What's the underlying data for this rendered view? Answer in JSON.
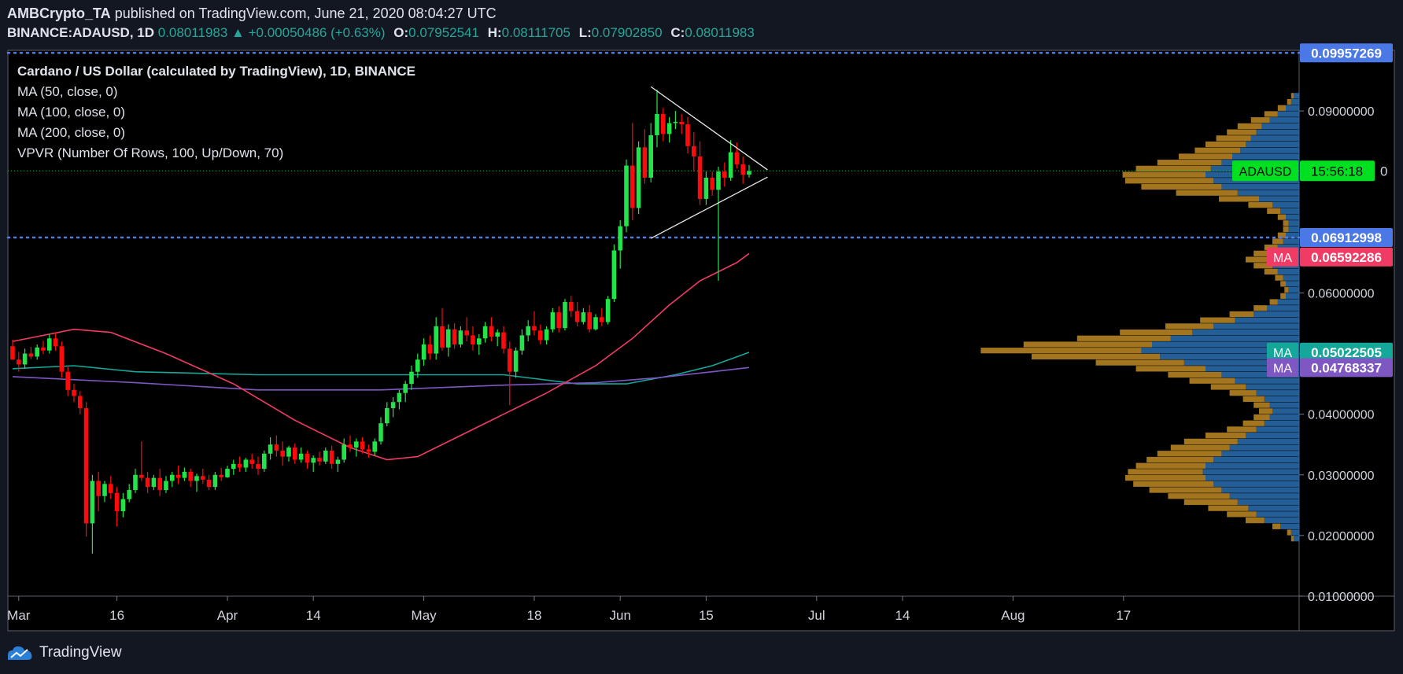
{
  "header": {
    "author": "AMBCrypto_TA",
    "published_text": "published on TradingView.com, June 21, 2020 08:04:27 UTC",
    "symbol": "BINANCE:ADAUSD, 1D",
    "last_price": "0.08011983",
    "change_arrow": "▲",
    "change": "+0.00050486 (+0.63%)",
    "open_label": "O:",
    "open": "0.07952541",
    "high_label": "H:",
    "high": "0.08111705",
    "low_label": "L:",
    "low": "0.07902850",
    "close_label": "C:",
    "close": "0.08011983"
  },
  "legend": {
    "title": "Cardano / US Dollar (calculated by TradingView), 1D, BINANCE",
    "ma50": "MA (50, close, 0)",
    "ma100": "MA (100, close, 0)",
    "ma200": "MA (200, close, 0)",
    "vpvr": "VPVR (Number Of Rows, 100, Up/Down, 70)"
  },
  "price_labels": {
    "top_line": "0.09957269",
    "mid_line": "0.06912998",
    "ma50": "0.06592286",
    "ma100": "0.05022505",
    "ma200": "0.04768337",
    "ma_tag": "MA",
    "ticker": "ADAUSD",
    "countdown": "15:56:18",
    "price_tail": "0"
  },
  "colors": {
    "background": "#131722",
    "bull": "#22e34a",
    "bear": "#ff0a0a",
    "ma50": "#f03c64",
    "ma100": "#14a89a",
    "ma200": "#7e57c2",
    "level_line": "#5b7cf0",
    "vp_up": "#2a6fb0",
    "vp_down": "#c08a24",
    "triangle": "#e8e8e8"
  },
  "footer": {
    "brand": "TradingView"
  },
  "chart_data": {
    "type": "candlestick",
    "title": "Cardano / US Dollar (calculated by TradingView), 1D, BINANCE",
    "x_ticks": [
      "Mar",
      "16",
      "Apr",
      "14",
      "May",
      "18",
      "Jun",
      "15",
      "Jul",
      "14",
      "Aug",
      "17"
    ],
    "y_ticks": [
      "0.09000000",
      "0.06000000",
      "0.05000000",
      "0.04000000",
      "0.03000000",
      "0.02000000",
      "0.01000000"
    ],
    "ylim": [
      0.01,
      0.1
    ],
    "ohlc": [
      [
        0.0512,
        0.0523,
        0.0491,
        0.049
      ],
      [
        0.049,
        0.0503,
        0.047,
        0.0482
      ],
      [
        0.0482,
        0.0508,
        0.0475,
        0.05
      ],
      [
        0.05,
        0.0511,
        0.0491,
        0.0495
      ],
      [
        0.0495,
        0.0515,
        0.049,
        0.051
      ],
      [
        0.051,
        0.0521,
        0.0499,
        0.0505
      ],
      [
        0.0505,
        0.0532,
        0.05,
        0.0525
      ],
      [
        0.0525,
        0.0535,
        0.0505,
        0.0512
      ],
      [
        0.0512,
        0.052,
        0.046,
        0.047
      ],
      [
        0.047,
        0.0478,
        0.043,
        0.044
      ],
      [
        0.044,
        0.045,
        0.042,
        0.043
      ],
      [
        0.043,
        0.0438,
        0.04,
        0.041
      ],
      [
        0.041,
        0.042,
        0.0198,
        0.022
      ],
      [
        0.022,
        0.03,
        0.017,
        0.029
      ],
      [
        0.029,
        0.0305,
        0.024,
        0.0265
      ],
      [
        0.0265,
        0.029,
        0.0255,
        0.0285
      ],
      [
        0.0285,
        0.0298,
        0.026,
        0.027
      ],
      [
        0.027,
        0.028,
        0.0215,
        0.024
      ],
      [
        0.024,
        0.027,
        0.023,
        0.026
      ],
      [
        0.026,
        0.0285,
        0.0255,
        0.0275
      ],
      [
        0.0275,
        0.031,
        0.027,
        0.03
      ],
      [
        0.03,
        0.0355,
        0.029,
        0.0295
      ],
      [
        0.0295,
        0.0305,
        0.027,
        0.028
      ],
      [
        0.028,
        0.03,
        0.0275,
        0.0295
      ],
      [
        0.0295,
        0.031,
        0.0265,
        0.0275
      ],
      [
        0.0275,
        0.0298,
        0.027,
        0.029
      ],
      [
        0.029,
        0.0305,
        0.028,
        0.03
      ],
      [
        0.03,
        0.0315,
        0.0285,
        0.0295
      ],
      [
        0.0295,
        0.0312,
        0.029,
        0.0305
      ],
      [
        0.0305,
        0.031,
        0.028,
        0.029
      ],
      [
        0.029,
        0.0302,
        0.0272,
        0.0298
      ],
      [
        0.0298,
        0.031,
        0.0285,
        0.0292
      ],
      [
        0.0292,
        0.03,
        0.0275,
        0.028
      ],
      [
        0.028,
        0.0305,
        0.0275,
        0.03
      ],
      [
        0.03,
        0.0312,
        0.029,
        0.0296
      ],
      [
        0.0296,
        0.0315,
        0.0295,
        0.031
      ],
      [
        0.031,
        0.0325,
        0.03,
        0.0318
      ],
      [
        0.0318,
        0.033,
        0.0305,
        0.0312
      ],
      [
        0.0312,
        0.0328,
        0.0305,
        0.0325
      ],
      [
        0.0325,
        0.0335,
        0.031,
        0.0318
      ],
      [
        0.0318,
        0.033,
        0.03,
        0.031
      ],
      [
        0.031,
        0.034,
        0.0305,
        0.0335
      ],
      [
        0.0335,
        0.0362,
        0.0325,
        0.035
      ],
      [
        0.035,
        0.0365,
        0.033,
        0.034
      ],
      [
        0.034,
        0.0355,
        0.0315,
        0.033
      ],
      [
        0.033,
        0.0348,
        0.0322,
        0.0345
      ],
      [
        0.0345,
        0.0352,
        0.0318,
        0.0325
      ],
      [
        0.0325,
        0.0345,
        0.032,
        0.0335
      ],
      [
        0.0335,
        0.034,
        0.031,
        0.032
      ],
      [
        0.032,
        0.0332,
        0.0305,
        0.0328
      ],
      [
        0.0328,
        0.0338,
        0.0315,
        0.0322
      ],
      [
        0.0322,
        0.0345,
        0.0318,
        0.034
      ],
      [
        0.034,
        0.0348,
        0.031,
        0.0318
      ],
      [
        0.0318,
        0.033,
        0.0305,
        0.0325
      ],
      [
        0.0325,
        0.036,
        0.032,
        0.035
      ],
      [
        0.035,
        0.0365,
        0.0338,
        0.0345
      ],
      [
        0.0345,
        0.036,
        0.033,
        0.0355
      ],
      [
        0.0355,
        0.0362,
        0.0335,
        0.0342
      ],
      [
        0.0342,
        0.035,
        0.0328,
        0.0338
      ],
      [
        0.0338,
        0.036,
        0.0332,
        0.0355
      ],
      [
        0.0355,
        0.0395,
        0.035,
        0.0385
      ],
      [
        0.0385,
        0.042,
        0.038,
        0.041
      ],
      [
        0.041,
        0.0428,
        0.0395,
        0.042
      ],
      [
        0.042,
        0.044,
        0.0408,
        0.0435
      ],
      [
        0.0435,
        0.0455,
        0.042,
        0.045
      ],
      [
        0.045,
        0.048,
        0.044,
        0.047
      ],
      [
        0.047,
        0.05,
        0.046,
        0.049
      ],
      [
        0.049,
        0.0525,
        0.048,
        0.0515
      ],
      [
        0.0515,
        0.053,
        0.049,
        0.05
      ],
      [
        0.05,
        0.056,
        0.049,
        0.0545
      ],
      [
        0.0545,
        0.0575,
        0.0505,
        0.051
      ],
      [
        0.051,
        0.0548,
        0.0495,
        0.054
      ],
      [
        0.054,
        0.055,
        0.0508,
        0.0515
      ],
      [
        0.0515,
        0.0545,
        0.051,
        0.0538
      ],
      [
        0.0538,
        0.056,
        0.052,
        0.053
      ],
      [
        0.053,
        0.0545,
        0.0505,
        0.0515
      ],
      [
        0.0515,
        0.0532,
        0.0498,
        0.0525
      ],
      [
        0.0525,
        0.0552,
        0.0518,
        0.0545
      ],
      [
        0.0545,
        0.056,
        0.052,
        0.0528
      ],
      [
        0.0528,
        0.054,
        0.0512,
        0.0535
      ],
      [
        0.0535,
        0.0545,
        0.05,
        0.0508
      ],
      [
        0.0508,
        0.052,
        0.0415,
        0.047
      ],
      [
        0.047,
        0.051,
        0.046,
        0.0505
      ],
      [
        0.0505,
        0.054,
        0.0498,
        0.053
      ],
      [
        0.053,
        0.0555,
        0.052,
        0.0545
      ],
      [
        0.0545,
        0.057,
        0.053,
        0.0538
      ],
      [
        0.0538,
        0.0548,
        0.0515,
        0.0522
      ],
      [
        0.0522,
        0.0545,
        0.0515,
        0.054
      ],
      [
        0.054,
        0.0575,
        0.0535,
        0.0568
      ],
      [
        0.0568,
        0.0578,
        0.0535,
        0.0542
      ],
      [
        0.0542,
        0.059,
        0.0538,
        0.0585
      ],
      [
        0.0585,
        0.0595,
        0.056,
        0.057
      ],
      [
        0.057,
        0.0585,
        0.0545,
        0.0552
      ],
      [
        0.0552,
        0.0575,
        0.0548,
        0.0568
      ],
      [
        0.0568,
        0.058,
        0.0535,
        0.054
      ],
      [
        0.054,
        0.0565,
        0.0538,
        0.056
      ],
      [
        0.056,
        0.0575,
        0.0545,
        0.0552
      ],
      [
        0.0552,
        0.0595,
        0.0548,
        0.059
      ],
      [
        0.059,
        0.068,
        0.0585,
        0.067
      ],
      [
        0.067,
        0.072,
        0.064,
        0.071
      ],
      [
        0.071,
        0.082,
        0.07,
        0.081
      ],
      [
        0.081,
        0.088,
        0.072,
        0.074
      ],
      [
        0.074,
        0.085,
        0.073,
        0.084
      ],
      [
        0.084,
        0.087,
        0.078,
        0.079
      ],
      [
        0.079,
        0.088,
        0.0782,
        0.086
      ],
      [
        0.086,
        0.0935,
        0.084,
        0.0895
      ],
      [
        0.0895,
        0.0905,
        0.085,
        0.0862
      ],
      [
        0.0862,
        0.089,
        0.0848,
        0.088
      ],
      [
        0.088,
        0.09,
        0.087,
        0.0882
      ],
      [
        0.0882,
        0.0895,
        0.0862,
        0.0878
      ],
      [
        0.0878,
        0.089,
        0.083,
        0.0842
      ],
      [
        0.0842,
        0.0865,
        0.08,
        0.0825
      ],
      [
        0.0825,
        0.085,
        0.0745,
        0.0755
      ],
      [
        0.0755,
        0.08,
        0.0745,
        0.079
      ],
      [
        0.079,
        0.08,
        0.076,
        0.077
      ],
      [
        0.077,
        0.0808,
        0.062,
        0.08
      ],
      [
        0.08,
        0.0815,
        0.0775,
        0.079
      ],
      [
        0.079,
        0.0852,
        0.0785,
        0.0832
      ],
      [
        0.0832,
        0.0848,
        0.0805,
        0.0812
      ],
      [
        0.0812,
        0.0825,
        0.078,
        0.0795
      ],
      [
        0.0795,
        0.0811,
        0.079,
        0.0801
      ]
    ],
    "ma50": [
      [
        0,
        0.052
      ],
      [
        10,
        0.054
      ],
      [
        16,
        0.0535
      ],
      [
        25,
        0.05
      ],
      [
        36,
        0.045
      ],
      [
        46,
        0.039
      ],
      [
        55,
        0.0345
      ],
      [
        61,
        0.0325
      ],
      [
        66,
        0.033
      ],
      [
        72,
        0.036
      ],
      [
        80,
        0.04
      ],
      [
        87,
        0.0435
      ],
      [
        95,
        0.048
      ],
      [
        101,
        0.0525
      ],
      [
        107,
        0.058
      ],
      [
        112,
        0.062
      ],
      [
        118,
        0.065
      ],
      [
        120,
        0.0665
      ]
    ],
    "ma100": [
      [
        0,
        0.0475
      ],
      [
        10,
        0.048
      ],
      [
        20,
        0.047
      ],
      [
        40,
        0.0465
      ],
      [
        60,
        0.0465
      ],
      [
        80,
        0.0465
      ],
      [
        92,
        0.045
      ],
      [
        100,
        0.045
      ],
      [
        108,
        0.0465
      ],
      [
        114,
        0.048
      ],
      [
        120,
        0.0502
      ]
    ],
    "ma200": [
      [
        0,
        0.0462
      ],
      [
        20,
        0.0452
      ],
      [
        40,
        0.044
      ],
      [
        60,
        0.044
      ],
      [
        80,
        0.0448
      ],
      [
        95,
        0.0452
      ],
      [
        105,
        0.046
      ],
      [
        114,
        0.047
      ],
      [
        120,
        0.0477
      ]
    ],
    "horizontal_levels": [
      0.09957269,
      0.06912998
    ],
    "current_price": 0.08011983,
    "triangle": {
      "upper": [
        [
          104,
          0.094
        ],
        [
          123,
          0.0803
        ]
      ],
      "lower": [
        [
          104,
          0.069
        ],
        [
          123,
          0.0791
        ]
      ]
    },
    "volume_profile": {
      "rows": [
        [
          0.0195,
          4,
          2
        ],
        [
          0.0205,
          6,
          3
        ],
        [
          0.0215,
          14,
          6
        ],
        [
          0.0225,
          26,
          14
        ],
        [
          0.0235,
          32,
          22
        ],
        [
          0.0245,
          38,
          30
        ],
        [
          0.0255,
          46,
          40
        ],
        [
          0.0265,
          52,
          46
        ],
        [
          0.0275,
          58,
          54
        ],
        [
          0.0285,
          64,
          60
        ],
        [
          0.0295,
          70,
          60
        ],
        [
          0.0305,
          72,
          56
        ],
        [
          0.0315,
          70,
          52
        ],
        [
          0.0325,
          64,
          50
        ],
        [
          0.0335,
          58,
          48
        ],
        [
          0.0345,
          52,
          44
        ],
        [
          0.0355,
          46,
          40
        ],
        [
          0.0365,
          40,
          30
        ],
        [
          0.0375,
          32,
          22
        ],
        [
          0.0385,
          26,
          16
        ],
        [
          0.0395,
          22,
          12
        ],
        [
          0.0405,
          20,
          10
        ],
        [
          0.0415,
          22,
          12
        ],
        [
          0.0425,
          26,
          16
        ],
        [
          0.0435,
          32,
          20
        ],
        [
          0.0445,
          40,
          26
        ],
        [
          0.0455,
          48,
          34
        ],
        [
          0.0465,
          58,
          40
        ],
        [
          0.0475,
          70,
          52
        ],
        [
          0.0485,
          86,
          66
        ],
        [
          0.0495,
          104,
          96
        ],
        [
          0.0505,
          118,
          120
        ],
        [
          0.0515,
          110,
          96
        ],
        [
          0.0525,
          96,
          70
        ],
        [
          0.0535,
          80,
          54
        ],
        [
          0.0545,
          64,
          36
        ],
        [
          0.0555,
          48,
          26
        ],
        [
          0.0565,
          34,
          18
        ],
        [
          0.0575,
          24,
          10
        ],
        [
          0.0585,
          16,
          6
        ],
        [
          0.0595,
          10,
          4
        ],
        [
          0.0605,
          8,
          3
        ],
        [
          0.0615,
          10,
          4
        ],
        [
          0.0625,
          12,
          6
        ],
        [
          0.0635,
          16,
          10
        ],
        [
          0.0645,
          20,
          14
        ],
        [
          0.0655,
          22,
          18
        ],
        [
          0.0665,
          20,
          14
        ],
        [
          0.0675,
          16,
          10
        ],
        [
          0.0685,
          12,
          8
        ],
        [
          0.0695,
          10,
          6
        ],
        [
          0.0705,
          8,
          4
        ],
        [
          0.0715,
          8,
          4
        ],
        [
          0.0725,
          10,
          6
        ],
        [
          0.0735,
          14,
          10
        ],
        [
          0.0745,
          20,
          18
        ],
        [
          0.0755,
          30,
          30
        ],
        [
          0.0765,
          46,
          46
        ],
        [
          0.0775,
          58,
          60
        ],
        [
          0.0785,
          64,
          66
        ],
        [
          0.0795,
          70,
          62
        ],
        [
          0.0805,
          66,
          56
        ],
        [
          0.0815,
          58,
          48
        ],
        [
          0.0825,
          50,
          40
        ],
        [
          0.0835,
          44,
          34
        ],
        [
          0.0845,
          40,
          30
        ],
        [
          0.0855,
          36,
          26
        ],
        [
          0.0865,
          32,
          22
        ],
        [
          0.0875,
          28,
          18
        ],
        [
          0.0885,
          22,
          14
        ],
        [
          0.0895,
          16,
          10
        ],
        [
          0.0905,
          10,
          6
        ],
        [
          0.0915,
          6,
          3
        ],
        [
          0.0925,
          4,
          2
        ]
      ]
    }
  }
}
